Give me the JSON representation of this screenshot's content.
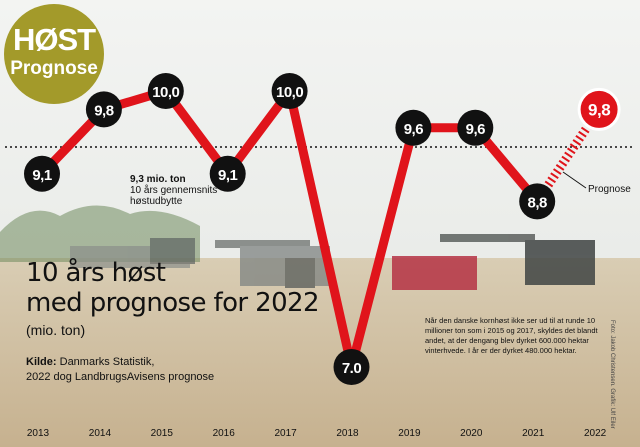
{
  "badge": {
    "line1": "HØST",
    "line2": "Prognose"
  },
  "headline": {
    "line1": "10 års høst",
    "line2": "med prognose for 2022"
  },
  "unit_label": "(mio. ton)",
  "source": {
    "label": "Kilde:",
    "line1": "Danmarks Statistik,",
    "line2": "2022 dog LandbrugsAvisens prognose"
  },
  "average": {
    "value_label": "9,3 mio. ton",
    "line1": "10 års gennemsnits",
    "line2": "høstudbytte"
  },
  "prognose_label": "Prognose",
  "note": "Når den danske kornhøst ikke ser ud til at runde 10 millioner ton som i 2015 og 2017, skyldes det blandt andet, at der dengang blev dyrket 600.000 hektar vinterhvede. I år er der dyrket 480.000 hektar.",
  "photo_credit": "Foto: Jakob Christensen. Grafik: Ulf Eiler",
  "colors": {
    "line": "#e0141b",
    "badge": "#a39a2a",
    "marker": "#111111"
  },
  "chart_data": {
    "type": "line",
    "x": [
      "2013",
      "2014",
      "2015",
      "2016",
      "2017",
      "2018",
      "2019",
      "2020",
      "2021",
      "2022"
    ],
    "values": [
      9.1,
      9.8,
      10.0,
      9.1,
      10.0,
      7.0,
      9.6,
      9.6,
      8.8,
      9.8
    ],
    "labels": [
      "9,1",
      "9,8",
      "10,0",
      "9,1",
      "10,0",
      "7.0",
      "9,6",
      "9,6",
      "8,8",
      "9,8"
    ],
    "forecast_index": 9,
    "reference_line": 9.3,
    "reference_style": "dotted"
  }
}
